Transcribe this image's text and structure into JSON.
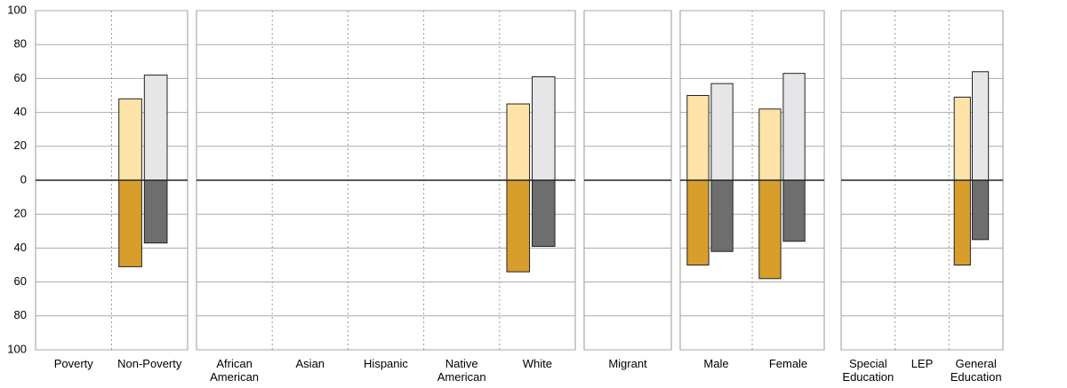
{
  "chart_data": [
    {
      "type": "bar",
      "categories": [
        "Poverty",
        "Non-Poverty"
      ],
      "ylim": [
        -100,
        100
      ],
      "yticks": [
        {
          "value": -100,
          "label": "100"
        },
        {
          "value": -80,
          "label": "80"
        },
        {
          "value": -60,
          "label": "60"
        },
        {
          "value": -40,
          "label": "40"
        },
        {
          "value": -20,
          "label": "20"
        },
        0,
        20,
        40,
        60,
        80,
        100
      ],
      "series": [
        {
          "color": "#fde3a7",
          "values": [
            null,
            48
          ]
        },
        {
          "color": "#e6e6e8",
          "values": [
            null,
            62
          ]
        },
        {
          "color": "#d89e2c",
          "values": [
            null,
            -51
          ]
        },
        {
          "color": "#6e6e6e",
          "values": [
            null,
            -37
          ]
        }
      ]
    },
    {
      "type": "bar",
      "categories": [
        "African American",
        "Asian",
        "Hispanic",
        "Native American",
        "White"
      ],
      "series": [
        {
          "color": "#fde3a7",
          "values": [
            null,
            null,
            null,
            null,
            45
          ]
        },
        {
          "color": "#e6e6e8",
          "values": [
            null,
            null,
            null,
            null,
            61
          ]
        },
        {
          "color": "#d89e2c",
          "values": [
            null,
            null,
            null,
            null,
            -54
          ]
        },
        {
          "color": "#6e6e6e",
          "values": [
            null,
            null,
            null,
            null,
            -39
          ]
        }
      ]
    },
    {
      "type": "bar",
      "categories": [
        "Migrant"
      ],
      "series": [
        {
          "color": "#fde3a7",
          "values": [
            null
          ]
        },
        {
          "color": "#e6e6e8",
          "values": [
            null
          ]
        },
        {
          "color": "#d89e2c",
          "values": [
            null
          ]
        },
        {
          "color": "#6e6e6e",
          "values": [
            null
          ]
        }
      ]
    },
    {
      "type": "bar",
      "categories": [
        "Male",
        "Female"
      ],
      "series": [
        {
          "color": "#fde3a7",
          "values": [
            50,
            42
          ]
        },
        {
          "color": "#e6e6e8",
          "values": [
            57,
            63
          ]
        },
        {
          "color": "#d89e2c",
          "values": [
            -50,
            -58
          ]
        },
        {
          "color": "#6e6e6e",
          "values": [
            -42,
            -36
          ]
        }
      ]
    },
    {
      "type": "bar",
      "categories": [
        "Special Education",
        "LEP",
        "General Education"
      ],
      "series": [
        {
          "color": "#fde3a7",
          "values": [
            null,
            null,
            49
          ]
        },
        {
          "color": "#e6e6e8",
          "values": [
            null,
            null,
            64
          ]
        },
        {
          "color": "#d89e2c",
          "values": [
            null,
            null,
            -50
          ]
        },
        {
          "color": "#6e6e6e",
          "values": [
            null,
            null,
            -35
          ]
        }
      ]
    }
  ]
}
